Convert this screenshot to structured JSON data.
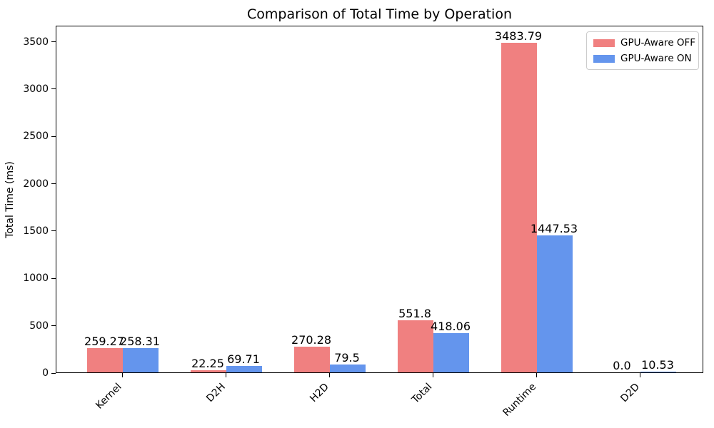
{
  "chart_data": {
    "type": "bar",
    "title": "Comparison of Total Time by Operation",
    "xlabel": "",
    "ylabel": "Total Time (ms)",
    "categories": [
      "Kernel",
      "D2H",
      "H2D",
      "Total",
      "Runtime",
      "D2D"
    ],
    "series": [
      {
        "name": "GPU-Aware OFF",
        "color": "#f08080",
        "values": [
          259.27,
          22.25,
          270.28,
          551.8,
          3483.79,
          0.0
        ],
        "value_labels": [
          "259.27",
          "22.25",
          "270.28",
          "551.8",
          "3483.79",
          "0.0"
        ]
      },
      {
        "name": "GPU-Aware ON",
        "color": "#6495ed",
        "values": [
          258.31,
          69.71,
          79.5,
          418.06,
          1447.53,
          10.53
        ],
        "value_labels": [
          "258.31",
          "69.71",
          "79.5",
          "418.06",
          "1447.53",
          "10.53"
        ]
      }
    ],
    "yticks": [
      0,
      500,
      1000,
      1500,
      2000,
      2500,
      3000,
      3500
    ],
    "ylim": [
      0,
      3670
    ],
    "grid": false,
    "legend_position": "upper right"
  }
}
